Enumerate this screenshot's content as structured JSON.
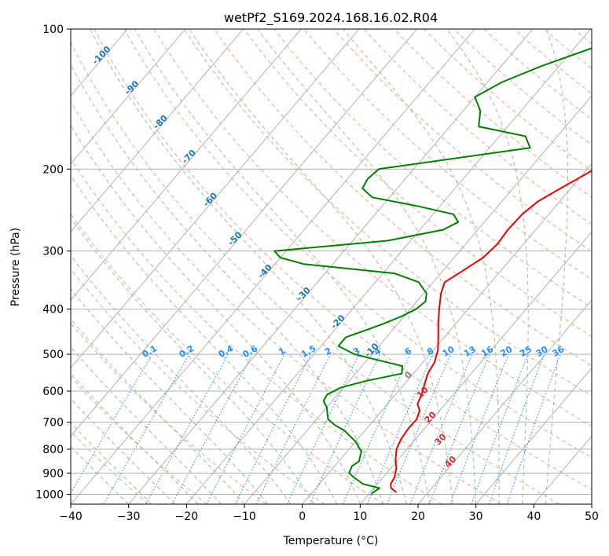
{
  "chart_data": {
    "type": "line",
    "title": "wetPf2_S169.2024.168.16.02.R04",
    "xlabel": "Temperature (°C)",
    "ylabel": "Pressure (hPa)",
    "xlim": [
      -40,
      50
    ],
    "ylim": [
      1050,
      100
    ],
    "y_scale": "log",
    "grid": true,
    "x_ticks": [
      -40,
      -30,
      -20,
      -10,
      0,
      10,
      20,
      30,
      40,
      50
    ],
    "y_ticks": [
      100,
      200,
      300,
      400,
      500,
      600,
      700,
      800,
      900,
      1000
    ],
    "colors": {
      "temperature": "#ee0000",
      "dewpoint": "#008000",
      "isotherm": "#aaaaaa",
      "dry_adiabat": "#f4a582",
      "moist_adiabat": "#90c890",
      "mixing_ratio": "#1e90ff",
      "dry_adiabat_label": "#d62728",
      "moist_adiabat_label": "#1f77b4",
      "moist_zero_label": "#7f7f7f",
      "mixing_ratio_label": "#1e90ff"
    },
    "series": [
      {
        "key": "temperature",
        "p": [
          990,
          970,
          950,
          920,
          880,
          840,
          800,
          760,
          720,
          690,
          660,
          640,
          610,
          580,
          550,
          520,
          490,
          460,
          430,
          400,
          370,
          350,
          330,
          310,
          290,
          270,
          250,
          235,
          220,
          205,
          190,
          175,
          160,
          150,
          140,
          130,
          120,
          110,
          100
        ],
        "t": [
          14.5,
          13.0,
          12.3,
          12.0,
          11.0,
          9.5,
          8.2,
          7.5,
          7.2,
          7.3,
          6.5,
          5.2,
          4.5,
          3.5,
          2.5,
          2.0,
          0.8,
          -1.0,
          -3.0,
          -5.0,
          -7.0,
          -8.0,
          -6.5,
          -5.0,
          -4.5,
          -4.8,
          -4.6,
          -3.8,
          -1.8,
          0.5,
          2.7,
          4.7,
          7.5,
          10.0,
          13.0,
          16.0,
          17.2,
          18.5,
          20.0
        ]
      },
      {
        "key": "dewpoint",
        "p": [
          1000,
          990,
          970,
          950,
          920,
          900,
          870,
          850,
          810,
          770,
          730,
          710,
          690,
          670,
          650,
          630,
          610,
          590,
          570,
          550,
          530,
          515,
          500,
          480,
          460,
          440,
          430,
          415,
          400,
          385,
          370,
          360,
          350,
          335,
          320,
          310,
          300,
          285,
          270,
          260,
          250,
          240,
          230,
          220,
          210,
          200,
          180,
          170,
          162,
          150,
          140,
          130,
          120,
          110,
          100
        ],
        "t": [
          10.5,
          10.5,
          11.0,
          7.5,
          5.0,
          3.5,
          3.0,
          3.5,
          2.5,
          0.0,
          -3.5,
          -6.0,
          -8.0,
          -9.0,
          -10.0,
          -11.5,
          -11.8,
          -10.5,
          -7.0,
          -2.0,
          -3.0,
          -8.0,
          -13.0,
          -17.0,
          -17.0,
          -14.0,
          -12.5,
          -10.5,
          -9.0,
          -8.5,
          -9.5,
          -11.0,
          -12.5,
          -18.0,
          -35.0,
          -40.0,
          -42.0,
          -24.0,
          -16.0,
          -14.5,
          -16.5,
          -24.0,
          -33.0,
          -36.0,
          -36.5,
          -36.0,
          -13.0,
          -15.5,
          -25.0,
          -27.0,
          -30.0,
          -27.5,
          -23.0,
          -17.0,
          -10.0
        ]
      }
    ],
    "dry_adiabat_labels": [
      "10",
      "20",
      "30",
      "40"
    ],
    "moist_adiabat_labels": [
      "-100",
      "-90",
      "-80",
      "-70",
      "-60",
      "-50",
      "-40",
      "-30",
      "-20",
      "-10",
      "0"
    ],
    "mixing_ratio_labels": [
      "0.1",
      "0.2",
      "0.4",
      "0.6",
      "1",
      "1.5",
      "2",
      "3",
      "4",
      "6",
      "8",
      "10",
      "13",
      "16",
      "20",
      "25",
      "30",
      "36"
    ]
  }
}
